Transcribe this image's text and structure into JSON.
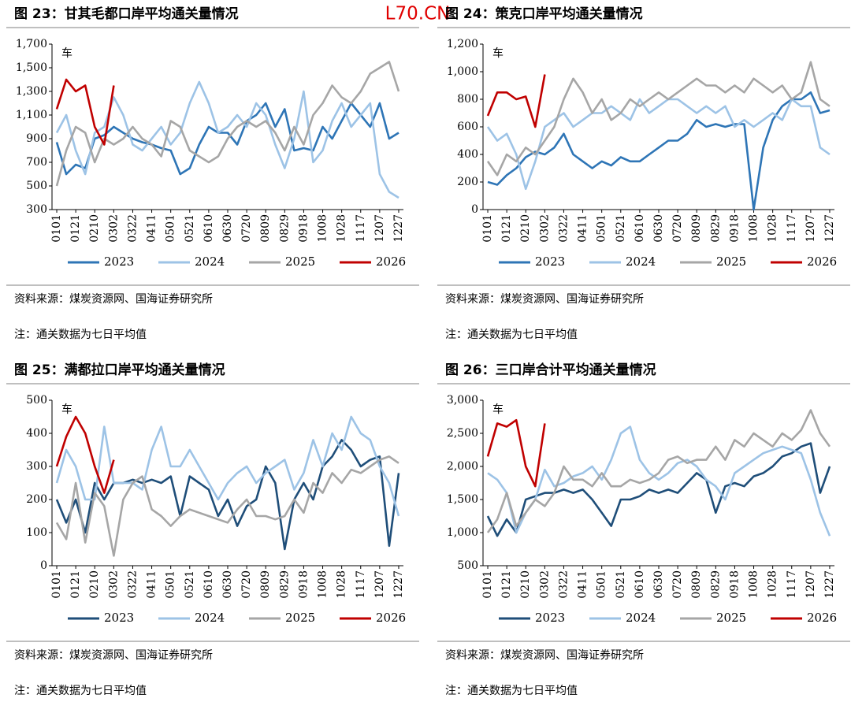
{
  "watermark": "L70.CN",
  "chart_data": [
    {
      "type": "line",
      "title": "图 23：甘其毛都口岸平均通关量情况",
      "y_unit": "车",
      "categories": [
        "0101",
        null,
        "0121",
        null,
        "0210",
        null,
        "0302",
        null,
        "0322",
        null,
        "0411",
        null,
        "0501",
        null,
        "0521",
        null,
        "0610",
        null,
        "0630",
        null,
        "0720",
        null,
        "0809",
        null,
        "0829",
        null,
        "0918",
        null,
        "1008",
        null,
        "1028",
        null,
        "1117",
        null,
        "1207",
        null,
        "1227"
      ],
      "series": [
        {
          "name": "2023",
          "color": "#2e75b6",
          "values": [
            870,
            600,
            680,
            650,
            900,
            930,
            1000,
            950,
            900,
            870,
            850,
            820,
            800,
            600,
            650,
            850,
            1000,
            950,
            950,
            850,
            1050,
            1100,
            1200,
            1000,
            1150,
            800,
            820,
            800,
            1000,
            900,
            1050,
            1200,
            1100,
            1000,
            1200,
            900,
            950
          ]
        },
        {
          "name": "2024",
          "color": "#9dc3e6",
          "values": [
            950,
            1100,
            800,
            600,
            950,
            1000,
            1250,
            1100,
            850,
            800,
            900,
            1000,
            850,
            950,
            1200,
            1380,
            1200,
            950,
            1000,
            1100,
            1000,
            1200,
            1100,
            850,
            650,
            900,
            1300,
            700,
            800,
            1050,
            1200,
            1000,
            1100,
            1200,
            600,
            450,
            400
          ]
        },
        {
          "name": "2025",
          "color": "#a6a6a6",
          "values": [
            500,
            800,
            1000,
            950,
            700,
            900,
            850,
            900,
            1000,
            900,
            850,
            750,
            1050,
            1000,
            800,
            750,
            700,
            750,
            900,
            1000,
            1050,
            1000,
            1050,
            950,
            800,
            1000,
            850,
            1100,
            1200,
            1350,
            1250,
            1200,
            1300,
            1450,
            1500,
            1550,
            1300
          ]
        },
        {
          "name": "2026",
          "color": "#c00000",
          "values": [
            1150,
            1400,
            1300,
            1350,
            1000,
            850,
            1350,
            null,
            null,
            null,
            null,
            null,
            null,
            null,
            null,
            null,
            null,
            null,
            null,
            null,
            null,
            null,
            null,
            null,
            null,
            null,
            null,
            null,
            null,
            null,
            null,
            null,
            null,
            null,
            null,
            null,
            null
          ]
        }
      ],
      "ylim": [
        300,
        1700
      ],
      "yticks": [
        300,
        500,
        700,
        900,
        {
          "value": 1100,
          "label": "1,100"
        },
        {
          "value": 1300,
          "label": "1,300"
        },
        {
          "value": 1500,
          "label": "1,500"
        },
        {
          "value": 1700,
          "label": "1,700"
        }
      ],
      "source": "资料来源：煤炭资源网、国海证券研究所",
      "note": "注：通关数据为七日平均值"
    },
    {
      "type": "line",
      "title": "图 24：策克口岸平均通关量情况",
      "y_unit": "车",
      "categories": [
        "0101",
        null,
        "0121",
        null,
        "0210",
        null,
        "0302",
        null,
        "0322",
        null,
        "0411",
        null,
        "0501",
        null,
        "0521",
        null,
        "0610",
        null,
        "0630",
        null,
        "0720",
        null,
        "0809",
        null,
        "0829",
        null,
        "0918",
        null,
        "1008",
        null,
        "1028",
        null,
        "1117",
        null,
        "1207",
        null,
        "1227"
      ],
      "series": [
        {
          "name": "2023",
          "color": "#2e75b6",
          "values": [
            200,
            180,
            250,
            300,
            380,
            420,
            400,
            450,
            550,
            400,
            350,
            300,
            350,
            320,
            380,
            350,
            350,
            400,
            450,
            500,
            500,
            550,
            650,
            600,
            620,
            600,
            620,
            620,
            0,
            450,
            650,
            750,
            800,
            800,
            850,
            700,
            720
          ]
        },
        {
          "name": "2024",
          "color": "#9dc3e6",
          "values": [
            600,
            500,
            550,
            400,
            150,
            350,
            600,
            650,
            700,
            600,
            650,
            700,
            700,
            750,
            700,
            650,
            800,
            700,
            750,
            800,
            800,
            750,
            700,
            750,
            700,
            750,
            600,
            650,
            600,
            650,
            700,
            650,
            800,
            750,
            750,
            450,
            400
          ]
        },
        {
          "name": "2025",
          "color": "#a6a6a6",
          "values": [
            350,
            250,
            400,
            350,
            450,
            400,
            500,
            600,
            800,
            950,
            850,
            700,
            800,
            650,
            700,
            800,
            750,
            800,
            850,
            800,
            850,
            900,
            950,
            900,
            900,
            850,
            900,
            850,
            950,
            900,
            850,
            900,
            800,
            850,
            1070,
            800,
            750
          ]
        },
        {
          "name": "2026",
          "color": "#c00000",
          "values": [
            680,
            850,
            850,
            800,
            820,
            600,
            980,
            null,
            null,
            null,
            null,
            null,
            null,
            null,
            null,
            null,
            null,
            null,
            null,
            null,
            null,
            null,
            null,
            null,
            null,
            null,
            null,
            null,
            null,
            null,
            null,
            null,
            null,
            null,
            null,
            null,
            null
          ]
        }
      ],
      "ylim": [
        0,
        1200
      ],
      "yticks": [
        0,
        200,
        400,
        600,
        800,
        {
          "value": 1000,
          "label": "1,000"
        },
        {
          "value": 1200,
          "label": "1,200"
        }
      ],
      "source": "资料来源：煤炭资源网、国海证券研究所",
      "note": "注：通关数据为七日平均值"
    },
    {
      "type": "line",
      "title": "图 25：满都拉口岸平均通关量情况",
      "y_unit": "车",
      "categories": [
        "0101",
        null,
        "0121",
        null,
        "0210",
        null,
        "0302",
        null,
        "0322",
        null,
        "0411",
        null,
        "0501",
        null,
        "0521",
        null,
        "0610",
        null,
        "0630",
        null,
        "0720",
        null,
        "0809",
        null,
        "0829",
        null,
        "0918",
        null,
        "1008",
        null,
        "1028",
        null,
        "1117",
        null,
        "1207",
        null,
        "1227"
      ],
      "series": [
        {
          "name": "2023",
          "color": "#1f4e79",
          "values": [
            200,
            130,
            200,
            100,
            250,
            200,
            250,
            250,
            260,
            250,
            260,
            250,
            270,
            150,
            270,
            250,
            230,
            150,
            200,
            120,
            180,
            200,
            300,
            250,
            50,
            200,
            250,
            200,
            300,
            330,
            380,
            350,
            300,
            320,
            330,
            60,
            280
          ]
        },
        {
          "name": "2024",
          "color": "#9dc3e6",
          "values": [
            250,
            350,
            300,
            200,
            200,
            420,
            250,
            250,
            250,
            230,
            350,
            420,
            300,
            300,
            350,
            300,
            250,
            200,
            250,
            280,
            300,
            250,
            280,
            300,
            320,
            230,
            280,
            380,
            300,
            400,
            350,
            450,
            400,
            380,
            300,
            250,
            150
          ]
        },
        {
          "name": "2025",
          "color": "#a6a6a6",
          "values": [
            130,
            80,
            250,
            70,
            220,
            180,
            30,
            200,
            250,
            270,
            170,
            150,
            120,
            150,
            170,
            160,
            150,
            140,
            130,
            170,
            200,
            150,
            150,
            140,
            150,
            200,
            160,
            250,
            220,
            280,
            250,
            290,
            280,
            300,
            320,
            330,
            310
          ]
        },
        {
          "name": "2026",
          "color": "#c00000",
          "values": [
            300,
            390,
            450,
            400,
            300,
            220,
            320,
            null,
            null,
            null,
            null,
            null,
            null,
            null,
            null,
            null,
            null,
            null,
            null,
            null,
            null,
            null,
            null,
            null,
            null,
            null,
            null,
            null,
            null,
            null,
            null,
            null,
            null,
            null,
            null,
            null,
            null
          ]
        }
      ],
      "ylim": [
        0,
        500
      ],
      "yticks": [
        0,
        100,
        200,
        300,
        400,
        500
      ],
      "source": "资料来源：煤炭资源网、国海证券研究所",
      "note": "注：通关数据为七日平均值"
    },
    {
      "type": "line",
      "title": "图 26：三口岸合计平均通关量情况",
      "y_unit": "车",
      "categories": [
        "0101",
        null,
        "0121",
        null,
        "0210",
        null,
        "0302",
        null,
        "0322",
        null,
        "0411",
        null,
        "0501",
        null,
        "0521",
        null,
        "0610",
        null,
        "0630",
        null,
        "0720",
        null,
        "0809",
        null,
        "0829",
        null,
        "0918",
        null,
        "1008",
        null,
        "1028",
        null,
        "1117",
        null,
        "1207",
        null,
        "1227"
      ],
      "series": [
        {
          "name": "2023",
          "color": "#1f4e79",
          "values": [
            1250,
            950,
            1200,
            1000,
            1500,
            1550,
            1600,
            1600,
            1650,
            1600,
            1650,
            1500,
            1300,
            1100,
            1500,
            1500,
            1550,
            1650,
            1600,
            1650,
            1600,
            1750,
            1900,
            1800,
            1300,
            1700,
            1750,
            1700,
            1850,
            1900,
            2000,
            2150,
            2200,
            2300,
            2350,
            1600,
            2000
          ]
        },
        {
          "name": "2024",
          "color": "#9dc3e6",
          "values": [
            1900,
            1800,
            1600,
            1000,
            1300,
            1500,
            1950,
            1700,
            1750,
            1850,
            1900,
            2000,
            1800,
            2100,
            2500,
            2600,
            2100,
            1900,
            1800,
            1900,
            2050,
            2100,
            2000,
            1800,
            1700,
            1500,
            1900,
            2000,
            2100,
            2200,
            2250,
            2300,
            2250,
            2200,
            1800,
            1300,
            950
          ]
        },
        {
          "name": "2025",
          "color": "#a6a6a6",
          "values": [
            1000,
            1200,
            1600,
            1100,
            1300,
            1500,
            1400,
            1600,
            2000,
            1800,
            1800,
            1700,
            1900,
            1700,
            1700,
            1800,
            1750,
            1800,
            1900,
            2100,
            2150,
            2050,
            2100,
            2100,
            2300,
            2100,
            2400,
            2300,
            2500,
            2400,
            2300,
            2500,
            2400,
            2550,
            2850,
            2500,
            2300
          ]
        },
        {
          "name": "2026",
          "color": "#c00000",
          "values": [
            2150,
            2650,
            2600,
            2700,
            2000,
            1700,
            2650,
            null,
            null,
            null,
            null,
            null,
            null,
            null,
            null,
            null,
            null,
            null,
            null,
            null,
            null,
            null,
            null,
            null,
            null,
            null,
            null,
            null,
            null,
            null,
            null,
            null,
            null,
            null,
            null,
            null,
            null
          ]
        }
      ],
      "ylim": [
        500,
        3000
      ],
      "yticks": [
        500,
        {
          "value": 1000,
          "label": "1,000"
        },
        {
          "value": 1500,
          "label": "1,500"
        },
        {
          "value": 2000,
          "label": "2,000"
        },
        {
          "value": 2500,
          "label": "2,500"
        },
        {
          "value": 3000,
          "label": "3,000"
        }
      ],
      "source": "资料来源：煤炭资源网、国海证券研究所",
      "note": "注：通关数据为七日平均值"
    }
  ]
}
